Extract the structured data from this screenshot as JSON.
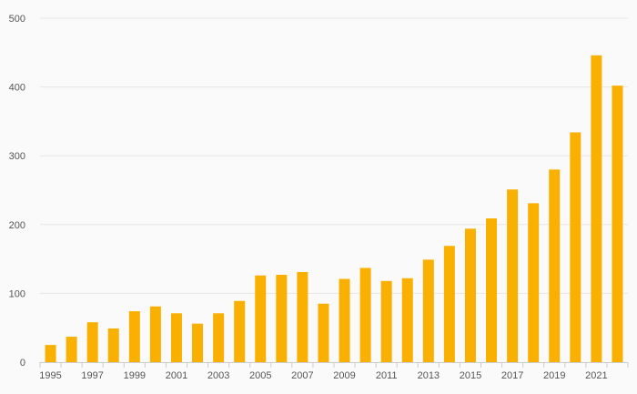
{
  "chart_data": {
    "type": "bar",
    "title": "",
    "xlabel": "",
    "ylabel": "",
    "categories": [
      "1995",
      "1996",
      "1997",
      "1998",
      "1999",
      "2000",
      "2001",
      "2002",
      "2003",
      "2004",
      "2005",
      "2006",
      "2007",
      "2008",
      "2009",
      "2010",
      "2011",
      "2012",
      "2013",
      "2014",
      "2015",
      "2016",
      "2017",
      "2018",
      "2019",
      "2020",
      "2021",
      "2022"
    ],
    "x_tick_labels": [
      "1995",
      "1997",
      "1999",
      "2001",
      "2003",
      "2005",
      "2007",
      "2009",
      "2011",
      "2013",
      "2015",
      "2017",
      "2019",
      "2021"
    ],
    "values": [
      25,
      37,
      58,
      49,
      74,
      81,
      71,
      56,
      71,
      89,
      126,
      127,
      131,
      85,
      121,
      137,
      118,
      122,
      149,
      169,
      194,
      209,
      251,
      231,
      280,
      334,
      446,
      402
    ],
    "ylim": [
      0,
      500
    ],
    "y_ticks": [
      0,
      100,
      200,
      300,
      400,
      500
    ],
    "grid": true,
    "legend": "none",
    "colors": {
      "bar": "#f9b000",
      "grid": "#e6e6e6",
      "axis": "#cccccc",
      "tick_text": "#555555"
    }
  }
}
